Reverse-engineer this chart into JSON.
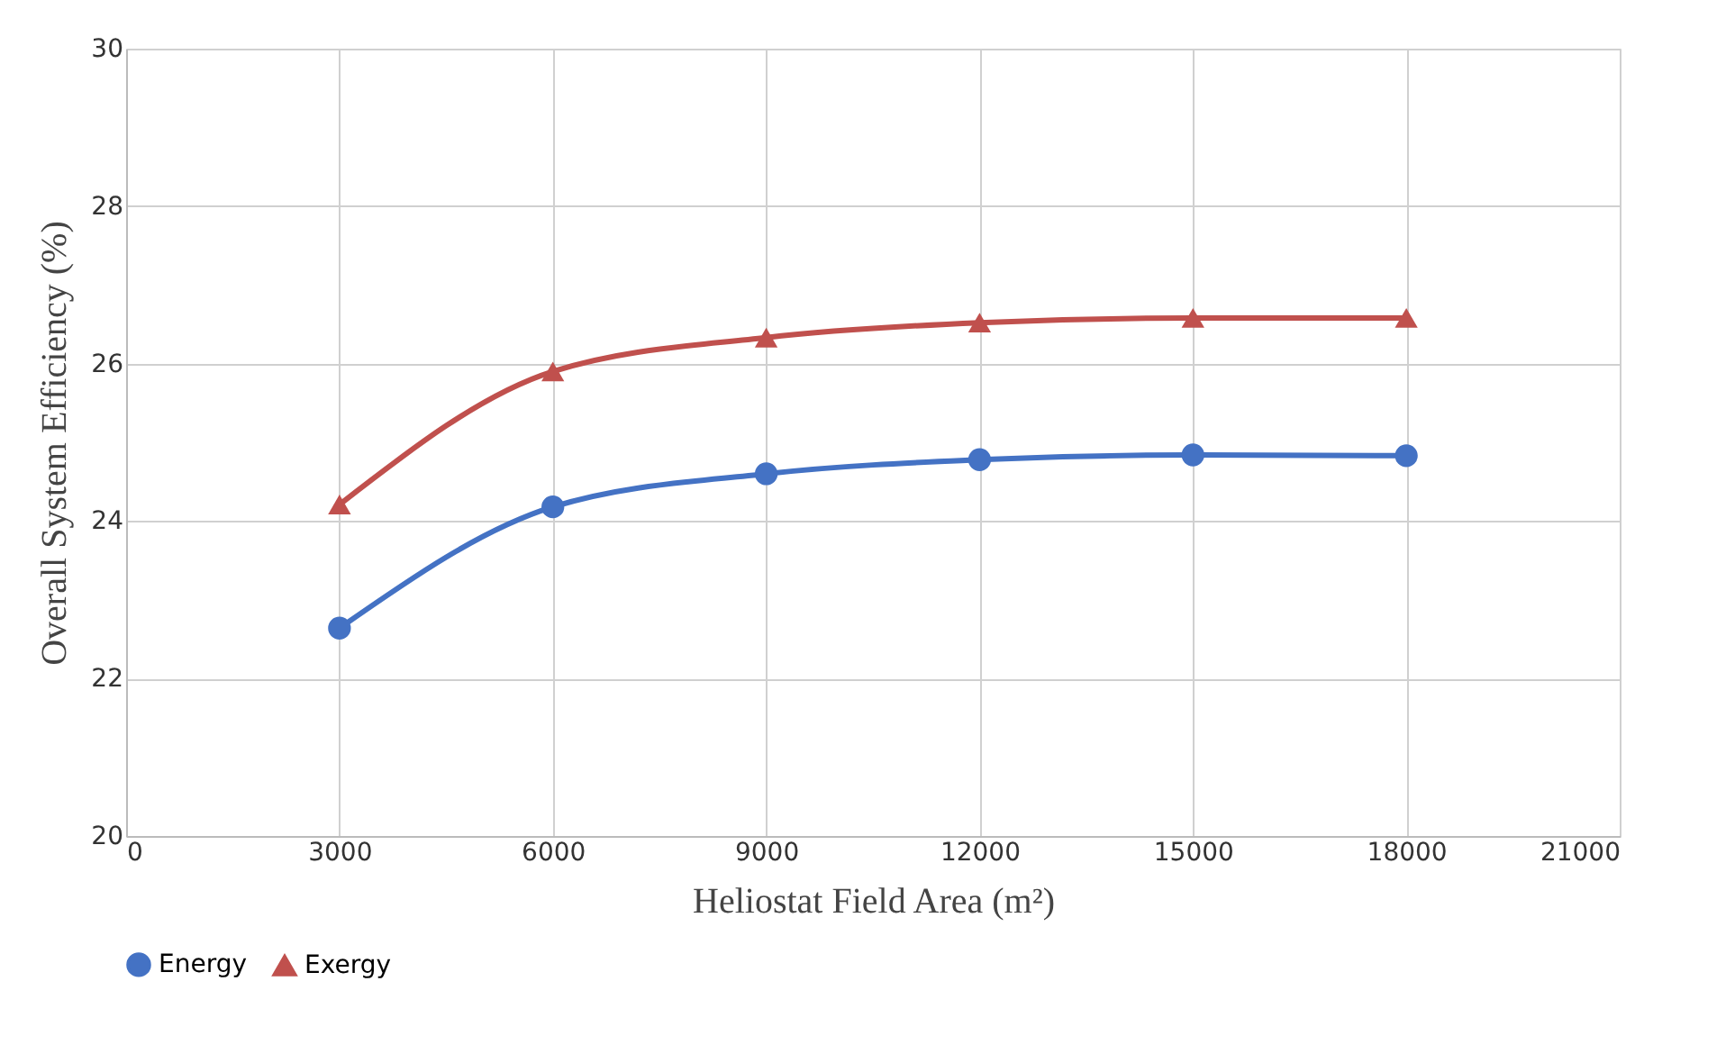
{
  "chart_data": {
    "type": "line",
    "xlabel": "Heliostat Field Area (m²)",
    "ylabel": "Overall System Efficiency (%)",
    "x": [
      3000,
      6000,
      9000,
      12000,
      15000,
      18000
    ],
    "series": [
      {
        "name": "Energy",
        "color": "#4472c4",
        "marker": "circle",
        "values": [
          22.64,
          24.18,
          24.6,
          24.78,
          24.84,
          24.83
        ]
      },
      {
        "name": "Exergy",
        "color": "#c0504d",
        "marker": "triangle",
        "values": [
          24.21,
          25.9,
          26.33,
          26.52,
          26.58,
          26.58
        ]
      }
    ],
    "xlim": [
      0,
      21000
    ],
    "xticks": [
      0,
      3000,
      6000,
      9000,
      12000,
      15000,
      18000,
      21000
    ],
    "ylim": [
      20,
      30
    ],
    "yticks": [
      20,
      22,
      24,
      26,
      28,
      30
    ],
    "grid": true,
    "legend": "bottom",
    "line_style": "solid"
  }
}
